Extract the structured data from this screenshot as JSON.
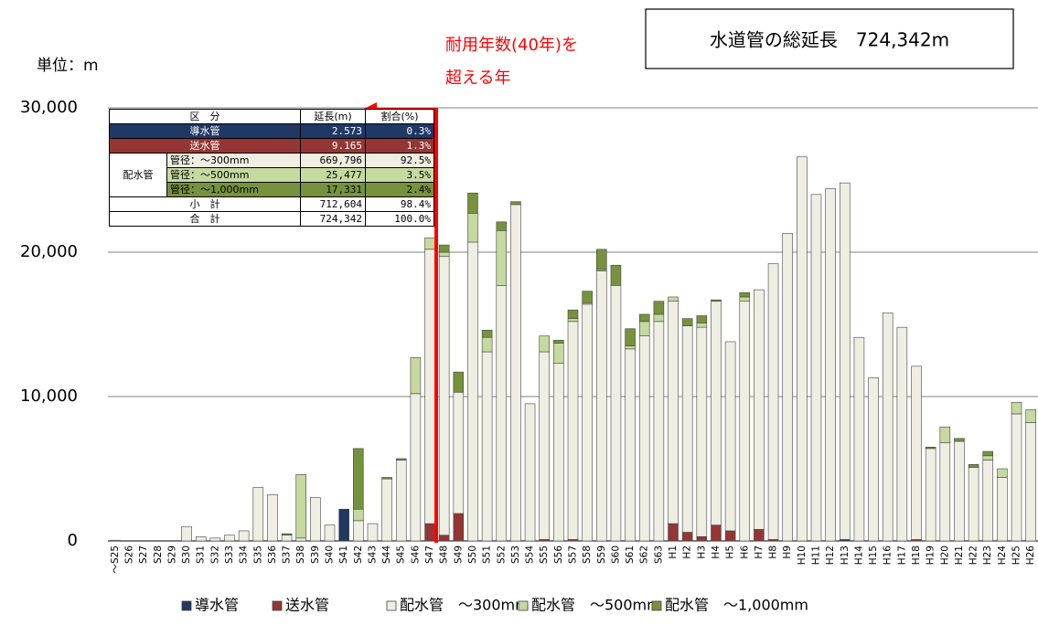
{
  "chart_data": {
    "type": "stacked_bar",
    "unit_label": "単位：m",
    "annotation": [
      "耐用年数(40年)を",
      "超える年"
    ],
    "total_label": "水道管の総延長　724,342m",
    "categories": [
      "～S25",
      "S26",
      "S27",
      "S28",
      "S29",
      "S30",
      "S31",
      "S32",
      "S33",
      "S34",
      "S35",
      "S36",
      "S37",
      "S38",
      "S39",
      "S40",
      "S41",
      "S42",
      "S43",
      "S44",
      "S45",
      "S46",
      "S47",
      "S48",
      "S49",
      "S50",
      "S51",
      "S52",
      "S53",
      "S54",
      "S55",
      "S56",
      "S57",
      "S58",
      "S59",
      "S60",
      "S61",
      "S62",
      "S63",
      "H1",
      "H2",
      "H3",
      "H4",
      "H5",
      "H6",
      "H7",
      "H8",
      "H9",
      "H10",
      "H11",
      "H12",
      "H13",
      "H14",
      "H15",
      "H16",
      "H17",
      "H18",
      "H19",
      "H20",
      "H21",
      "H22",
      "H23",
      "H24",
      "H25",
      "H26"
    ],
    "series": [
      {
        "name": "導水管",
        "color": "#1f3864",
        "values": [
          0,
          0,
          0,
          0,
          0,
          0,
          0,
          0,
          0,
          0,
          0,
          0,
          0,
          0,
          0,
          0,
          2200,
          0,
          0,
          0,
          0,
          0,
          0,
          0,
          0,
          0,
          0,
          0,
          0,
          0,
          0,
          0,
          0,
          0,
          0,
          0,
          0,
          0,
          0,
          0,
          0,
          0,
          0,
          0,
          0,
          0,
          0,
          0,
          0,
          0,
          0,
          100,
          0,
          0,
          0,
          0,
          0,
          0,
          0,
          0,
          0,
          0,
          0,
          0,
          0
        ]
      },
      {
        "name": "送水管",
        "color": "#943634",
        "values": [
          0,
          0,
          0,
          0,
          0,
          0,
          0,
          0,
          0,
          0,
          0,
          0,
          0,
          0,
          0,
          0,
          0,
          0,
          0,
          0,
          0,
          0,
          1200,
          400,
          1900,
          0,
          0,
          0,
          0,
          0,
          100,
          0,
          100,
          0,
          0,
          0,
          0,
          0,
          0,
          1200,
          600,
          300,
          1100,
          700,
          0,
          800,
          100,
          0,
          0,
          0,
          0,
          0,
          0,
          0,
          0,
          0,
          100,
          0,
          0,
          0,
          0,
          0,
          0,
          0,
          0
        ]
      },
      {
        "name": "配水管　～300mm",
        "color": "#eeefe2",
        "values": [
          50,
          0,
          0,
          0,
          0,
          1000,
          300,
          200,
          400,
          700,
          3700,
          3200,
          400,
          200,
          3000,
          1100,
          0,
          1400,
          1200,
          4300,
          5600,
          10200,
          19000,
          19300,
          8400,
          20700,
          13100,
          17700,
          23300,
          9500,
          13000,
          12300,
          15100,
          16400,
          18700,
          17700,
          13300,
          14200,
          15200,
          15400,
          14300,
          14500,
          15500,
          13100,
          16600,
          16600,
          19100,
          21300,
          26600,
          24000,
          24400,
          24700,
          14100,
          11300,
          15800,
          14800,
          12000,
          6400,
          6800,
          6900,
          5100,
          5600,
          4400,
          8800,
          8200
        ]
      },
      {
        "name": "配水管　～500mm",
        "color": "#c5d9a0",
        "values": [
          0,
          0,
          0,
          0,
          0,
          0,
          0,
          0,
          0,
          0,
          0,
          0,
          0,
          4400,
          0,
          0,
          0,
          800,
          0,
          0,
          0,
          2500,
          800,
          300,
          0,
          2000,
          1000,
          3800,
          0,
          0,
          1100,
          1400,
          200,
          100,
          100,
          0,
          200,
          1000,
          500,
          300,
          0,
          300,
          0,
          0,
          300,
          0,
          0,
          0,
          0,
          0,
          0,
          0,
          0,
          0,
          0,
          0,
          0,
          0,
          1100,
          0,
          0,
          300,
          600,
          800,
          900
        ]
      },
      {
        "name": "配水管　～1,000mm",
        "color": "#76923c",
        "values": [
          0,
          0,
          0,
          0,
          0,
          0,
          0,
          0,
          0,
          0,
          0,
          0,
          100,
          0,
          0,
          0,
          0,
          4200,
          0,
          100,
          100,
          0,
          0,
          500,
          1400,
          1400,
          500,
          600,
          200,
          0,
          0,
          200,
          600,
          800,
          1400,
          1400,
          1200,
          500,
          900,
          0,
          500,
          500,
          100,
          0,
          300,
          0,
          0,
          0,
          0,
          0,
          0,
          0,
          0,
          0,
          0,
          0,
          0,
          100,
          0,
          200,
          200,
          300,
          0,
          0,
          0
        ]
      }
    ],
    "ylim": [
      0,
      30000
    ],
    "yticks": [
      0,
      {
        "value": 10000,
        "label": "10,000"
      },
      {
        "value": 20000,
        "label": "20,000"
      },
      {
        "value": 30000,
        "label": "30,000"
      }
    ],
    "grid": true,
    "legend": "bottom",
    "table": {
      "header": [
        "区　分",
        "延長(m)",
        "割合(%)"
      ],
      "group": "配水管",
      "rows": [
        [
          "導水管",
          "2.573",
          "0.3%"
        ],
        [
          "送水管",
          "9.165",
          "1.3%"
        ],
        [
          "管径：～300mm",
          "669,796",
          "92.5%"
        ],
        [
          "管径：～500mm",
          "25,477",
          "3.5%"
        ],
        [
          "管径：～1,000mm",
          "17,331",
          "2.4%"
        ],
        [
          "小　計",
          "712,604",
          "98.4%"
        ],
        [
          "合　計",
          "724,342",
          "100.0%"
        ]
      ]
    }
  }
}
